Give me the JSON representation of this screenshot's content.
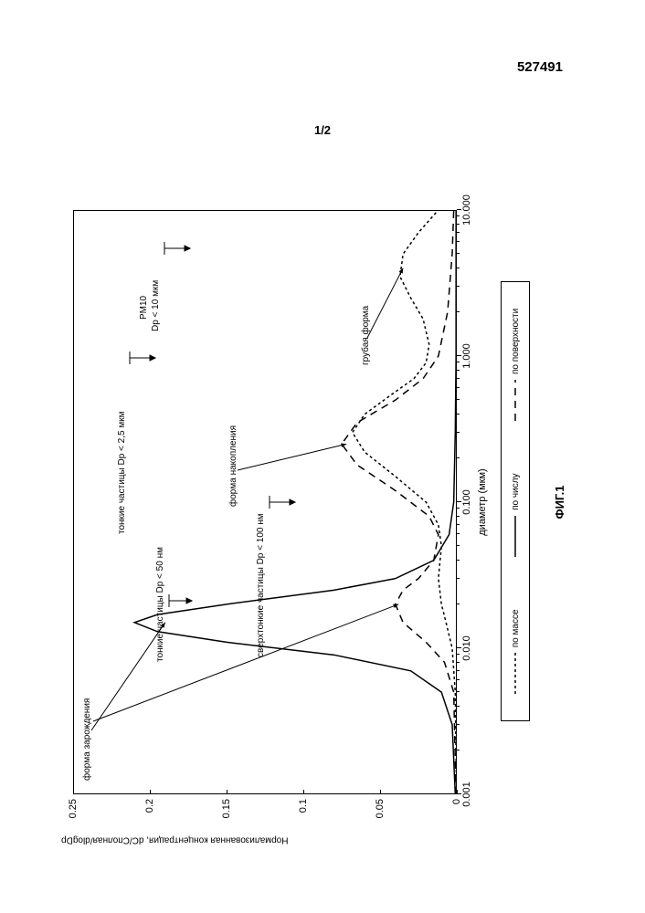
{
  "header": {
    "doc_number": "527491",
    "page_indicator": "1/2"
  },
  "chart": {
    "type": "line",
    "caption": "ФИГ.1",
    "xlabel": "диаметр (мкм)",
    "ylabel": "Нормализованная концентрация, dC/Cполная/dlogDp",
    "ylim": [
      0,
      0.25
    ],
    "yticks": [
      0,
      0.05,
      0.1,
      0.15,
      0.2,
      0.25
    ],
    "xscale": "log",
    "xlim": [
      0.001,
      10.0
    ],
    "xticks_labels": [
      "0.001",
      "0.010",
      "0.100",
      "1.000",
      "10.000"
    ],
    "xticks_values": [
      0.001,
      0.01,
      0.1,
      1.0,
      10.0
    ],
    "background_color": "#ffffff",
    "axis_color": "#000000",
    "legend": {
      "items": [
        {
          "label": "по массе",
          "style": "short-dash",
          "color": "#000000"
        },
        {
          "label": "по числу",
          "style": "solid",
          "color": "#000000"
        },
        {
          "label": "по поверхности",
          "style": "long-dash",
          "color": "#000000"
        }
      ]
    },
    "annotations": {
      "nucleation_mode": "форма зарождения",
      "accumulation_mode": "форма накопления",
      "coarse_mode": "грубая форма",
      "fine_50": "тонкие частицы Dp < 50 нм",
      "fine_25": "тонкие частицы Dp < 2,5 мкм",
      "ultrafine_100": "сверхтонкие частицы Dp < 100 нм",
      "pm10_a": "PM10",
      "pm10_b": "Dp < 10 мкм"
    },
    "series": {
      "by_number": {
        "color": "#000000",
        "dash": "none",
        "width": 1.5,
        "points": [
          [
            0.001,
            0.001
          ],
          [
            0.003,
            0.003
          ],
          [
            0.005,
            0.01
          ],
          [
            0.007,
            0.03
          ],
          [
            0.009,
            0.08
          ],
          [
            0.011,
            0.15
          ],
          [
            0.013,
            0.195
          ],
          [
            0.015,
            0.21
          ],
          [
            0.017,
            0.195
          ],
          [
            0.02,
            0.15
          ],
          [
            0.025,
            0.08
          ],
          [
            0.03,
            0.04
          ],
          [
            0.04,
            0.015
          ],
          [
            0.06,
            0.005
          ],
          [
            0.1,
            0.002
          ],
          [
            0.3,
            0.001
          ],
          [
            1.0,
            0.0005
          ],
          [
            10.0,
            0.0005
          ]
        ]
      },
      "by_surface": {
        "color": "#000000",
        "dash": "8 6",
        "width": 1.5,
        "points": [
          [
            0.001,
            0.0005
          ],
          [
            0.005,
            0.002
          ],
          [
            0.008,
            0.008
          ],
          [
            0.011,
            0.02
          ],
          [
            0.015,
            0.035
          ],
          [
            0.02,
            0.04
          ],
          [
            0.025,
            0.035
          ],
          [
            0.03,
            0.025
          ],
          [
            0.04,
            0.015
          ],
          [
            0.06,
            0.012
          ],
          [
            0.08,
            0.018
          ],
          [
            0.12,
            0.04
          ],
          [
            0.18,
            0.065
          ],
          [
            0.25,
            0.075
          ],
          [
            0.35,
            0.065
          ],
          [
            0.5,
            0.04
          ],
          [
            0.7,
            0.022
          ],
          [
            1.0,
            0.012
          ],
          [
            2.0,
            0.006
          ],
          [
            5.0,
            0.003
          ],
          [
            10.0,
            0.002
          ]
        ]
      },
      "by_mass": {
        "color": "#000000",
        "dash": "3 3",
        "width": 1.5,
        "points": [
          [
            0.001,
            0.0002
          ],
          [
            0.005,
            0.001
          ],
          [
            0.01,
            0.003
          ],
          [
            0.015,
            0.007
          ],
          [
            0.02,
            0.01
          ],
          [
            0.03,
            0.012
          ],
          [
            0.05,
            0.01
          ],
          [
            0.07,
            0.012
          ],
          [
            0.1,
            0.02
          ],
          [
            0.15,
            0.04
          ],
          [
            0.22,
            0.06
          ],
          [
            0.3,
            0.068
          ],
          [
            0.4,
            0.06
          ],
          [
            0.55,
            0.042
          ],
          [
            0.7,
            0.028
          ],
          [
            0.9,
            0.02
          ],
          [
            1.2,
            0.018
          ],
          [
            1.8,
            0.022
          ],
          [
            2.5,
            0.03
          ],
          [
            3.5,
            0.037
          ],
          [
            5.0,
            0.035
          ],
          [
            7.0,
            0.025
          ],
          [
            10.0,
            0.012
          ]
        ]
      }
    }
  }
}
